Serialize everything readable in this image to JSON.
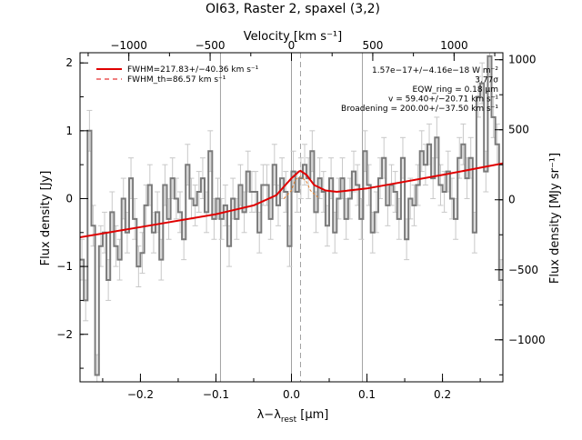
{
  "chart_data": {
    "type": "line",
    "title": "OI63, Raster 2, spaxel (3,2)",
    "xlabel": "λ−λ_rest [μm]",
    "xlabel_parts": {
      "main": "λ−λ",
      "sub": "rest",
      "unit": " [μm]"
    },
    "ylabel": "Flux density [Jy]",
    "x2label": "Velocity [km s⁻¹]",
    "y2label": "Flux density [MJy sr⁻¹]",
    "xlim": [
      -0.28,
      0.28
    ],
    "ylim": [
      -2.7,
      2.15
    ],
    "x2lim": [
      -1300,
      1300
    ],
    "y2lim": [
      -1300,
      1050
    ],
    "xticks": [
      -0.2,
      -0.1,
      0.0,
      0.1,
      0.2
    ],
    "xticklabels": [
      "−0.2",
      "−0.1",
      "0.0",
      "0.1",
      "0.2"
    ],
    "yticks": [
      -2,
      -1,
      0,
      1,
      2
    ],
    "yticklabels": [
      "−2",
      "−1",
      "0",
      "1",
      "2"
    ],
    "x2ticks": [
      -1000,
      -500,
      0,
      500,
      1000
    ],
    "x2ticklabels": [
      "−1000",
      "−500",
      "0",
      "500",
      "1000"
    ],
    "y2ticks": [
      -1000,
      -500,
      0,
      500,
      1000
    ],
    "y2ticklabels": [
      "−1000",
      "−500",
      "0",
      "500",
      "1000"
    ],
    "vlines": [
      -0.094,
      0.0,
      0.094
    ],
    "dashed_vline": 0.012,
    "legend": [
      {
        "label": "FWHM=217.83+/−40.36 km s⁻¹",
        "style": "solid",
        "color": "#e00000"
      },
      {
        "label": "FWHM_th=86.57 km s⁻¹",
        "style": "dashed",
        "color": "#e00000"
      }
    ],
    "annotations": [
      "1.57e−17+/−4.16e−18 W m⁻²",
      "3.77σ",
      "EQW_ring = 0.18 μm",
      "v = 59.40+/−20.71 km s⁻¹",
      "Broadening = 200.00+/−37.50 km s⁻¹"
    ],
    "colors": {
      "data": "#7a7a7a",
      "errorbar": "#c8c8c8",
      "fit": "#e00000",
      "fit_thermal": "#e08030",
      "vline": "#a0a0a0"
    },
    "series": [
      {
        "name": "spectrum",
        "x": [
          -0.2775,
          -0.2725,
          -0.2675,
          -0.2625,
          -0.2575,
          -0.2525,
          -0.2475,
          -0.2425,
          -0.2375,
          -0.2325,
          -0.2275,
          -0.2225,
          -0.2175,
          -0.2125,
          -0.2075,
          -0.2025,
          -0.1975,
          -0.1925,
          -0.1875,
          -0.1825,
          -0.1775,
          -0.1725,
          -0.1675,
          -0.1625,
          -0.1575,
          -0.1525,
          -0.1475,
          -0.1425,
          -0.1375,
          -0.1325,
          -0.1275,
          -0.1225,
          -0.1175,
          -0.1125,
          -0.1075,
          -0.1025,
          -0.0975,
          -0.0925,
          -0.0875,
          -0.0825,
          -0.0775,
          -0.0725,
          -0.0675,
          -0.0625,
          -0.0575,
          -0.0525,
          -0.0475,
          -0.0425,
          -0.0375,
          -0.0325,
          -0.0275,
          -0.0225,
          -0.0175,
          -0.0125,
          -0.0075,
          -0.0025,
          0.0025,
          0.0075,
          0.0125,
          0.0175,
          0.0225,
          0.0275,
          0.0325,
          0.0375,
          0.0425,
          0.0475,
          0.0525,
          0.0575,
          0.0625,
          0.0675,
          0.0725,
          0.0775,
          0.0825,
          0.0875,
          0.0925,
          0.0975,
          0.1025,
          0.1075,
          0.1125,
          0.1175,
          0.1225,
          0.1275,
          0.1325,
          0.1375,
          0.1425,
          0.1475,
          0.1525,
          0.1575,
          0.1625,
          0.1675,
          0.1725,
          0.1775,
          0.1825,
          0.1875,
          0.1925,
          0.1975,
          0.2025,
          0.2075,
          0.2125,
          0.2175,
          0.2225,
          0.2275,
          0.2325,
          0.2375,
          0.2425,
          0.2475,
          0.2525,
          0.2575,
          0.2625,
          0.2675,
          0.2725,
          0.2775
        ],
        "y": [
          -0.9,
          -1.5,
          1.0,
          -0.4,
          -2.6,
          -0.7,
          -0.5,
          -1.2,
          -0.2,
          -0.7,
          -0.9,
          0.0,
          -0.5,
          0.3,
          -0.3,
          -1.0,
          -0.8,
          -0.1,
          0.2,
          -0.5,
          -0.2,
          -0.9,
          0.2,
          -0.3,
          0.3,
          0.0,
          -0.2,
          -0.6,
          0.5,
          0.0,
          -0.1,
          0.1,
          0.3,
          -0.2,
          0.7,
          -0.3,
          0.0,
          -0.3,
          -0.1,
          -0.7,
          0.0,
          -0.3,
          0.2,
          -0.2,
          0.4,
          0.1,
          0.1,
          -0.5,
          0.2,
          0.2,
          -0.3,
          0.5,
          -0.1,
          0.3,
          0.1,
          -0.7,
          0.4,
          0.1,
          0.3,
          0.5,
          0.3,
          0.7,
          -0.2,
          0.3,
          0.1,
          -0.4,
          0.3,
          -0.5,
          0.0,
          0.3,
          -0.3,
          0.0,
          0.4,
          0.2,
          -0.3,
          0.7,
          0.2,
          -0.5,
          -0.2,
          0.3,
          0.6,
          -0.1,
          0.2,
          0.1,
          -0.3,
          0.6,
          -0.6,
          0.0,
          -0.1,
          0.2,
          0.7,
          0.5,
          0.8,
          0.3,
          0.9,
          0.2,
          0.1,
          0.4,
          0.0,
          -0.3,
          0.6,
          0.8,
          0.3,
          0.6,
          -0.5,
          1.5,
          1.7,
          0.4,
          2.1,
          1.2,
          0.8,
          -1.2
        ],
        "yerr": 0.3
      },
      {
        "name": "fit",
        "x": [
          -0.28,
          -0.2,
          -0.1,
          -0.05,
          -0.02,
          0.0,
          0.01,
          0.012,
          0.02,
          0.03,
          0.045,
          0.06,
          0.1,
          0.2,
          0.28
        ],
        "y": [
          -0.57,
          -0.42,
          -0.23,
          -0.1,
          0.05,
          0.3,
          0.4,
          0.41,
          0.35,
          0.2,
          0.12,
          0.1,
          0.15,
          0.35,
          0.52
        ]
      },
      {
        "name": "fit_thermal",
        "x": [
          -0.01,
          0.0,
          0.005,
          0.012,
          0.02,
          0.025,
          0.035
        ],
        "y": [
          0.0,
          0.12,
          0.28,
          0.33,
          0.25,
          0.12,
          0.02
        ]
      }
    ]
  }
}
